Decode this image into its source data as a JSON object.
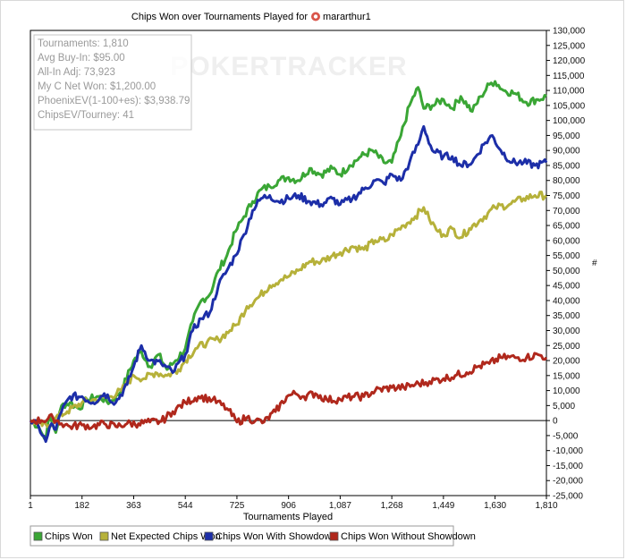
{
  "chart_data": {
    "type": "line",
    "title": "Chips Won over Tournaments Played for",
    "player": "mararthur1",
    "xlabel": "Tournaments Played",
    "ylabel": "#",
    "xlim": [
      1,
      1810
    ],
    "ylim": [
      -25000,
      130000
    ],
    "x_ticks": [
      "1",
      "182",
      "363",
      "544",
      "725",
      "906",
      "1,087",
      "1,268",
      "1,449",
      "1,630",
      "1,810"
    ],
    "y_ticks": [
      "130,000",
      "125,000",
      "120,000",
      "115,000",
      "110,000",
      "105,000",
      "100,000",
      "95,000",
      "90,000",
      "85,000",
      "80,000",
      "75,000",
      "70,000",
      "65,000",
      "60,000",
      "55,000",
      "50,000",
      "45,000",
      "40,000",
      "35,000",
      "30,000",
      "25,000",
      "20,000",
      "15,000",
      "10,000",
      "5,000",
      "0",
      "-5,000",
      "-10,000",
      "-15,000",
      "-20,000",
      "-25,000"
    ],
    "watermark": "POKERTRACKER",
    "stats": [
      "Tournaments: 1,810",
      "Avg Buy-In: $95.00",
      "All-In Adj: 73,923",
      "My C Net Won: $1,200.00",
      "PhoenixEV(1-100+es): $3,938.79",
      "ChipsEV/Tourney: 41"
    ],
    "series": [
      {
        "name": "Chips Won",
        "color": "#3aa635",
        "points": [
          [
            1,
            0
          ],
          [
            30,
            -2000
          ],
          [
            50,
            -6000
          ],
          [
            70,
            1000
          ],
          [
            90,
            -4000
          ],
          [
            110,
            5000
          ],
          [
            140,
            6000
          ],
          [
            170,
            4000
          ],
          [
            200,
            7000
          ],
          [
            240,
            8000
          ],
          [
            280,
            6000
          ],
          [
            320,
            10000
          ],
          [
            363,
            20000
          ],
          [
            390,
            23000
          ],
          [
            420,
            18000
          ],
          [
            450,
            22000
          ],
          [
            480,
            17000
          ],
          [
            510,
            20000
          ],
          [
            544,
            24000
          ],
          [
            570,
            33000
          ],
          [
            600,
            40000
          ],
          [
            630,
            42000
          ],
          [
            660,
            50000
          ],
          [
            690,
            55000
          ],
          [
            720,
            63000
          ],
          [
            750,
            68000
          ],
          [
            780,
            73000
          ],
          [
            810,
            77000
          ],
          [
            840,
            78000
          ],
          [
            870,
            80000
          ],
          [
            906,
            81000
          ],
          [
            940,
            80000
          ],
          [
            980,
            84000
          ],
          [
            1020,
            82000
          ],
          [
            1060,
            84000
          ],
          [
            1087,
            82000
          ],
          [
            1120,
            85000
          ],
          [
            1160,
            88000
          ],
          [
            1200,
            90000
          ],
          [
            1240,
            86000
          ],
          [
            1268,
            86000
          ],
          [
            1300,
            95000
          ],
          [
            1330,
            105000
          ],
          [
            1360,
            111000
          ],
          [
            1380,
            104000
          ],
          [
            1410,
            105000
          ],
          [
            1449,
            107000
          ],
          [
            1480,
            104000
          ],
          [
            1510,
            108000
          ],
          [
            1550,
            103000
          ],
          [
            1580,
            108000
          ],
          [
            1610,
            112000
          ],
          [
            1630,
            113000
          ],
          [
            1660,
            110000
          ],
          [
            1700,
            109000
          ],
          [
            1740,
            106000
          ],
          [
            1780,
            107000
          ],
          [
            1810,
            108000
          ]
        ]
      },
      {
        "name": "Net Expected Chips Won",
        "color": "#b6b13a",
        "points": [
          [
            1,
            0
          ],
          [
            30,
            -1000
          ],
          [
            60,
            -2000
          ],
          [
            90,
            1000
          ],
          [
            130,
            3000
          ],
          [
            182,
            6000
          ],
          [
            230,
            7000
          ],
          [
            280,
            8000
          ],
          [
            320,
            10000
          ],
          [
            363,
            15000
          ],
          [
            400,
            14000
          ],
          [
            440,
            16000
          ],
          [
            480,
            15000
          ],
          [
            520,
            17000
          ],
          [
            544,
            20000
          ],
          [
            580,
            24000
          ],
          [
            620,
            26000
          ],
          [
            660,
            27000
          ],
          [
            700,
            30000
          ],
          [
            725,
            32000
          ],
          [
            760,
            38000
          ],
          [
            800,
            41000
          ],
          [
            840,
            45000
          ],
          [
            880,
            47000
          ],
          [
            906,
            48000
          ],
          [
            940,
            50000
          ],
          [
            980,
            53000
          ],
          [
            1020,
            53000
          ],
          [
            1060,
            55000
          ],
          [
            1087,
            56000
          ],
          [
            1130,
            58000
          ],
          [
            1170,
            57000
          ],
          [
            1210,
            60000
          ],
          [
            1250,
            60000
          ],
          [
            1268,
            62000
          ],
          [
            1310,
            65000
          ],
          [
            1350,
            68000
          ],
          [
            1380,
            71000
          ],
          [
            1400,
            67000
          ],
          [
            1430,
            63000
          ],
          [
            1449,
            62000
          ],
          [
            1480,
            64000
          ],
          [
            1510,
            61000
          ],
          [
            1540,
            64000
          ],
          [
            1580,
            67000
          ],
          [
            1630,
            71000
          ],
          [
            1680,
            72000
          ],
          [
            1730,
            74000
          ],
          [
            1770,
            75000
          ],
          [
            1810,
            75000
          ]
        ]
      },
      {
        "name": "Chips Won With Showdown",
        "color": "#1c2ea8",
        "points": [
          [
            1,
            0
          ],
          [
            30,
            -2000
          ],
          [
            55,
            -7000
          ],
          [
            75,
            -1000
          ],
          [
            90,
            -3000
          ],
          [
            110,
            3000
          ],
          [
            140,
            8000
          ],
          [
            182,
            8000
          ],
          [
            220,
            6000
          ],
          [
            260,
            9000
          ],
          [
            300,
            6000
          ],
          [
            340,
            12000
          ],
          [
            363,
            18000
          ],
          [
            390,
            25000
          ],
          [
            420,
            20000
          ],
          [
            460,
            19000
          ],
          [
            500,
            16000
          ],
          [
            544,
            22000
          ],
          [
            570,
            30000
          ],
          [
            600,
            34000
          ],
          [
            630,
            36000
          ],
          [
            660,
            45000
          ],
          [
            690,
            50000
          ],
          [
            720,
            55000
          ],
          [
            750,
            62000
          ],
          [
            780,
            70000
          ],
          [
            810,
            74000
          ],
          [
            840,
            75000
          ],
          [
            870,
            73000
          ],
          [
            906,
            74000
          ],
          [
            940,
            75000
          ],
          [
            980,
            73000
          ],
          [
            1020,
            72000
          ],
          [
            1060,
            74000
          ],
          [
            1087,
            72000
          ],
          [
            1130,
            74000
          ],
          [
            1170,
            77000
          ],
          [
            1210,
            80000
          ],
          [
            1240,
            79000
          ],
          [
            1268,
            82000
          ],
          [
            1300,
            80000
          ],
          [
            1330,
            86000
          ],
          [
            1360,
            92000
          ],
          [
            1380,
            98000
          ],
          [
            1410,
            90000
          ],
          [
            1449,
            88000
          ],
          [
            1480,
            88000
          ],
          [
            1510,
            85000
          ],
          [
            1550,
            86000
          ],
          [
            1590,
            92000
          ],
          [
            1620,
            95000
          ],
          [
            1650,
            90000
          ],
          [
            1690,
            86000
          ],
          [
            1730,
            86000
          ],
          [
            1770,
            85000
          ],
          [
            1810,
            86000
          ]
        ]
      },
      {
        "name": "Chips Won Without Showdown",
        "color": "#b0281c",
        "points": [
          [
            1,
            0
          ],
          [
            40,
            0
          ],
          [
            80,
            1000
          ],
          [
            110,
            -1000
          ],
          [
            140,
            -2000
          ],
          [
            182,
            -1500
          ],
          [
            220,
            -2000
          ],
          [
            260,
            -1000
          ],
          [
            300,
            -2000
          ],
          [
            340,
            -1000
          ],
          [
            380,
            -1000
          ],
          [
            420,
            -500
          ],
          [
            460,
            -300
          ],
          [
            500,
            3000
          ],
          [
            544,
            6000
          ],
          [
            590,
            8000
          ],
          [
            640,
            7000
          ],
          [
            690,
            4000
          ],
          [
            725,
            -500
          ],
          [
            760,
            1000
          ],
          [
            790,
            0
          ],
          [
            820,
            -500
          ],
          [
            860,
            3000
          ],
          [
            900,
            8000
          ],
          [
            930,
            9000
          ],
          [
            960,
            8000
          ],
          [
            1000,
            9000
          ],
          [
            1040,
            7000
          ],
          [
            1087,
            7000
          ],
          [
            1130,
            8000
          ],
          [
            1170,
            8000
          ],
          [
            1210,
            10000
          ],
          [
            1268,
            11000
          ],
          [
            1310,
            11000
          ],
          [
            1350,
            12000
          ],
          [
            1400,
            13000
          ],
          [
            1449,
            14000
          ],
          [
            1490,
            15000
          ],
          [
            1530,
            16000
          ],
          [
            1570,
            18000
          ],
          [
            1610,
            19000
          ],
          [
            1650,
            21000
          ],
          [
            1700,
            21000
          ],
          [
            1740,
            21000
          ],
          [
            1780,
            22000
          ],
          [
            1810,
            21000
          ]
        ]
      }
    ]
  }
}
